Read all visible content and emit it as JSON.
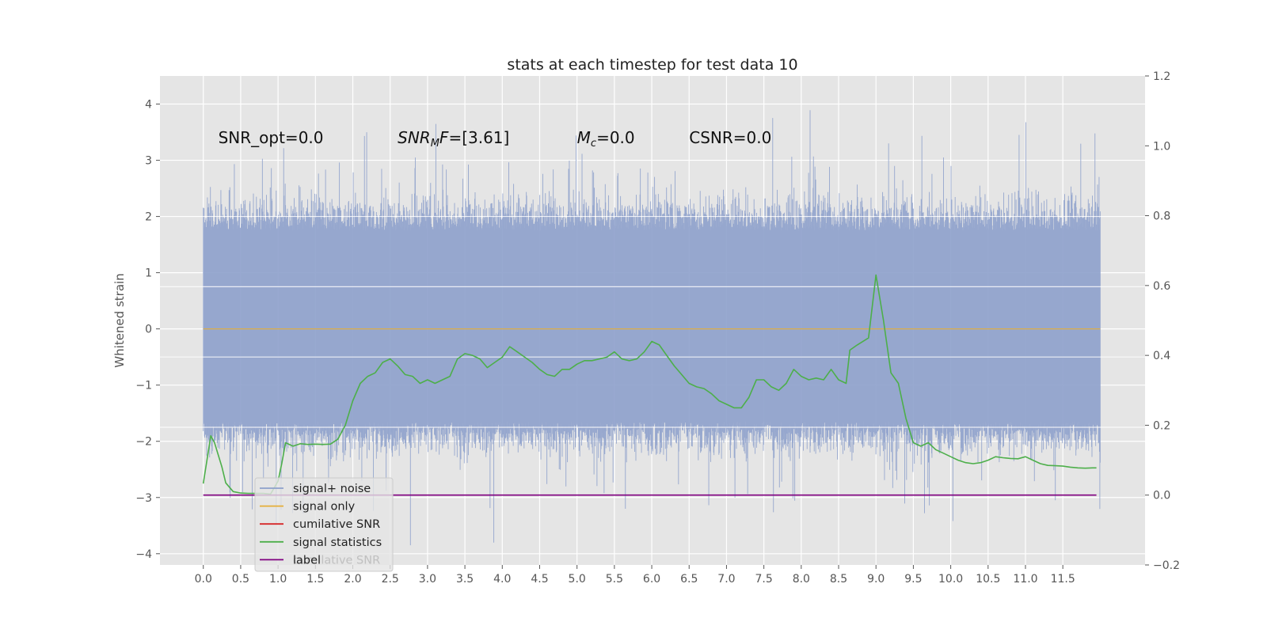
{
  "chart_data": {
    "type": "line",
    "title": "stats at each timestep for test data 10",
    "ylabel": "Whitened strain",
    "xlim": [
      -0.58,
      12.6
    ],
    "ylim": [
      -4.2,
      4.5
    ],
    "y2lim": [
      -0.2,
      1.2
    ],
    "grid": true,
    "legend_position": "lower-left",
    "x_ticks": [
      "0.0",
      "0.5",
      "1.0",
      "1.5",
      "2.0",
      "2.5",
      "3.0",
      "3.5",
      "4.0",
      "4.5",
      "5.0",
      "5.5",
      "6.0",
      "6.5",
      "7.0",
      "7.5",
      "8.0",
      "8.5",
      "9.0",
      "9.5",
      "10.0",
      "10.5",
      "11.0",
      "11.5"
    ],
    "y_ticks": [
      "4",
      "3",
      "2",
      "1",
      "0",
      "−1",
      "−2",
      "−3",
      "−4"
    ],
    "y2_ticks": [
      "1.2",
      "1.0",
      "0.8",
      "0.6",
      "0.4",
      "0.2",
      "0.0",
      "−0.2"
    ],
    "annotations": [
      {
        "text": "SNR_opt=0.0",
        "x": 0.2,
        "y": 3.3
      },
      {
        "text": "SNR_MF=[3.61]",
        "x": 2.6,
        "y": 3.3
      },
      {
        "text": "M_c=0.0",
        "x": 5.0,
        "y": 3.3
      },
      {
        "text": "CSNR=0.0",
        "x": 6.5,
        "y": 3.3
      }
    ],
    "series": [
      {
        "name": "signal+ noise",
        "axis": "left",
        "color": "#8da0cb",
        "x_range": [
          0.0,
          12.0
        ],
        "band_low": -1.8,
        "band_high": 1.9,
        "peak_max": 4.15,
        "peak_min": -3.85,
        "note_values": "dense noise time series, approx. range -3.85 to 4.15"
      },
      {
        "name": "signal only",
        "axis": "left",
        "color": "#e5ae38",
        "x": [
          0.0,
          12.0
        ],
        "values": [
          0.0,
          0.0
        ]
      },
      {
        "name": "cumilative SNR",
        "axis": "right",
        "color": "#d62728",
        "x": [],
        "values": []
      },
      {
        "name": "signal statistics",
        "axis": "right",
        "color": "#4daf4a",
        "x": [
          0.0,
          0.1,
          0.15,
          0.25,
          0.3,
          0.4,
          0.5,
          0.6,
          0.7,
          0.8,
          0.9,
          1.0,
          1.05,
          1.1,
          1.2,
          1.3,
          1.4,
          1.5,
          1.6,
          1.7,
          1.8,
          1.9,
          2.0,
          2.1,
          2.2,
          2.3,
          2.4,
          2.5,
          2.6,
          2.7,
          2.8,
          2.9,
          3.0,
          3.1,
          3.2,
          3.3,
          3.4,
          3.5,
          3.6,
          3.7,
          3.8,
          3.9,
          4.0,
          4.1,
          4.2,
          4.3,
          4.4,
          4.5,
          4.6,
          4.7,
          4.8,
          4.9,
          5.0,
          5.1,
          5.2,
          5.3,
          5.4,
          5.5,
          5.6,
          5.7,
          5.8,
          5.9,
          6.0,
          6.1,
          6.2,
          6.3,
          6.4,
          6.5,
          6.6,
          6.7,
          6.8,
          6.9,
          7.0,
          7.1,
          7.2,
          7.3,
          7.4,
          7.5,
          7.6,
          7.7,
          7.8,
          7.9,
          8.0,
          8.1,
          8.2,
          8.3,
          8.4,
          8.5,
          8.6,
          8.65,
          8.75,
          8.9,
          9.0,
          9.1,
          9.2,
          9.3,
          9.4,
          9.5,
          9.6,
          9.7,
          9.8,
          9.9,
          10.0,
          10.1,
          10.2,
          10.3,
          10.4,
          10.5,
          10.6,
          10.7,
          10.8,
          10.9,
          11.0,
          11.1,
          11.2,
          11.3,
          11.4,
          11.5,
          11.6,
          11.7,
          11.8,
          11.9,
          11.95
        ],
        "values": [
          0.033,
          0.17,
          0.15,
          0.08,
          0.035,
          0.01,
          0.006,
          0.005,
          0.005,
          0.005,
          0.003,
          0.04,
          0.09,
          0.15,
          0.14,
          0.147,
          0.145,
          0.146,
          0.145,
          0.146,
          0.16,
          0.2,
          0.27,
          0.32,
          0.34,
          0.35,
          0.38,
          0.39,
          0.37,
          0.345,
          0.34,
          0.32,
          0.33,
          0.32,
          0.33,
          0.34,
          0.39,
          0.405,
          0.4,
          0.39,
          0.365,
          0.38,
          0.395,
          0.425,
          0.41,
          0.395,
          0.38,
          0.36,
          0.345,
          0.34,
          0.36,
          0.36,
          0.375,
          0.385,
          0.385,
          0.39,
          0.395,
          0.41,
          0.39,
          0.385,
          0.39,
          0.41,
          0.44,
          0.43,
          0.4,
          0.37,
          0.345,
          0.32,
          0.31,
          0.305,
          0.29,
          0.27,
          0.26,
          0.25,
          0.25,
          0.28,
          0.33,
          0.33,
          0.31,
          0.3,
          0.32,
          0.36,
          0.34,
          0.33,
          0.335,
          0.33,
          0.36,
          0.33,
          0.32,
          0.415,
          0.43,
          0.45,
          0.63,
          0.5,
          0.35,
          0.32,
          0.22,
          0.15,
          0.14,
          0.15,
          0.13,
          0.12,
          0.11,
          0.1,
          0.093,
          0.09,
          0.093,
          0.1,
          0.11,
          0.107,
          0.105,
          0.104,
          0.11,
          0.1,
          0.09,
          0.085,
          0.084,
          0.083,
          0.08,
          0.078,
          0.077,
          0.078,
          0.078
        ],
        "note_values": "y values in right-axis units"
      },
      {
        "name": "label",
        "axis": "right",
        "color": "#800080",
        "x": [
          0.0,
          11.95
        ],
        "values": [
          0.0,
          0.0
        ]
      }
    ],
    "legend_entries": [
      "signal+ noise",
      "signal only",
      "cumilative SNR",
      "signal statistics",
      "label"
    ],
    "legend_occluded_text": "cumilative SNR"
  }
}
